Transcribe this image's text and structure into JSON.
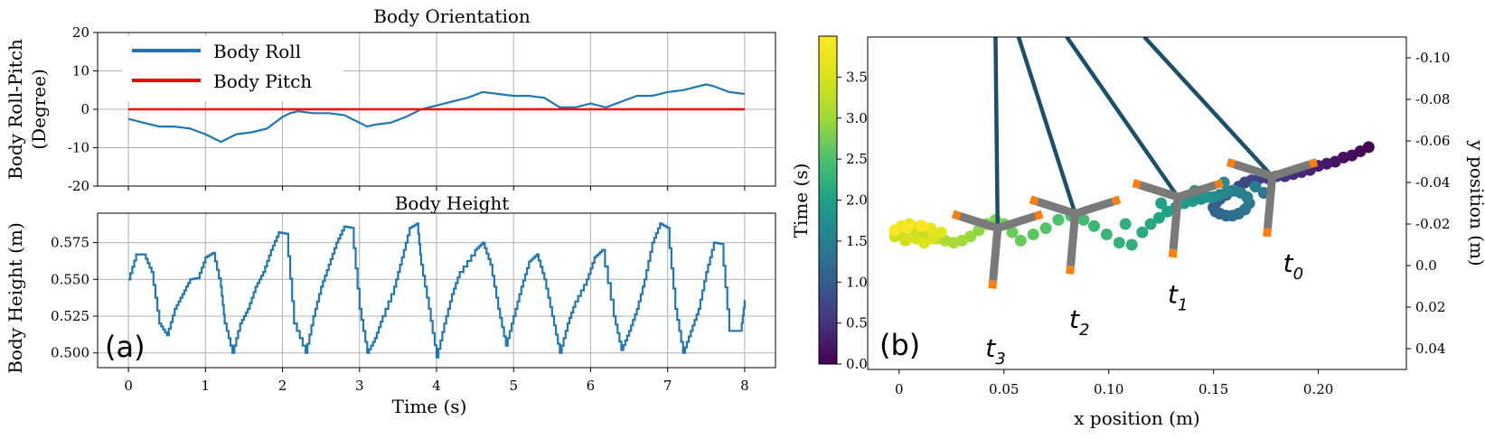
{
  "chart_data": [
    {
      "id": "orientation",
      "type": "line",
      "title": "Body Orientation",
      "ylabel_line1": "Body Roll-Pitch",
      "ylabel_line2": "(Degree)",
      "xlim": [
        -0.4,
        8.4
      ],
      "ylim": [
        -20,
        20
      ],
      "yticks": [
        20,
        10,
        0,
        -10,
        -20
      ],
      "xticks": [
        0,
        1,
        2,
        3,
        4,
        5,
        6,
        7,
        8
      ],
      "grid": true,
      "legend_position": "top-left",
      "series": [
        {
          "name": "Body Roll",
          "color": "#1f77b4",
          "x": [
            0,
            0.2,
            0.4,
            0.6,
            0.8,
            1.0,
            1.1,
            1.2,
            1.3,
            1.4,
            1.6,
            1.8,
            2.0,
            2.1,
            2.2,
            2.4,
            2.6,
            2.8,
            3.0,
            3.1,
            3.2,
            3.4,
            3.6,
            3.8,
            4.0,
            4.2,
            4.4,
            4.6,
            4.8,
            5.0,
            5.2,
            5.4,
            5.6,
            5.7,
            5.8,
            6.0,
            6.2,
            6.4,
            6.6,
            6.8,
            7.0,
            7.2,
            7.4,
            7.5,
            7.6,
            7.8,
            8.0
          ],
          "y": [
            -2.5,
            -3.5,
            -4.5,
            -4.5,
            -5,
            -6.5,
            -7.5,
            -8.5,
            -7.5,
            -6.5,
            -6,
            -5,
            -2,
            -1,
            -0.5,
            -1,
            -1,
            -1.5,
            -3.5,
            -4.5,
            -4,
            -3.5,
            -2,
            0,
            1,
            2,
            3,
            4.5,
            4,
            3.5,
            3.5,
            3,
            0.5,
            0.5,
            0.5,
            1.5,
            0.5,
            2,
            3.5,
            3.5,
            4.5,
            5,
            6,
            6.5,
            6,
            4.5,
            4
          ]
        },
        {
          "name": "Body Pitch",
          "color": "#ff0000",
          "x": [
            0,
            8
          ],
          "y": [
            0,
            0
          ]
        }
      ]
    },
    {
      "id": "height",
      "type": "line",
      "title": "Body Height",
      "ylabel": "Body Height (m)",
      "xlabel": "Time (s)",
      "xlim": [
        -0.4,
        8.4
      ],
      "ylim": [
        0.49,
        0.595
      ],
      "yticks": [
        0.575,
        0.55,
        0.525,
        0.5
      ],
      "ytick_labels": [
        "0.575",
        "0.550",
        "0.525",
        "0.500"
      ],
      "xticks": [
        0,
        1,
        2,
        3,
        4,
        5,
        6,
        7,
        8
      ],
      "grid": true,
      "panel_label": "(a)",
      "series": [
        {
          "name": "Body Height",
          "color": "#1f77b4",
          "x": [
            0,
            0.1,
            0.2,
            0.3,
            0.4,
            0.5,
            0.6,
            0.7,
            0.8,
            0.9,
            1.0,
            1.1,
            1.2,
            1.25,
            1.35,
            1.45,
            1.55,
            1.65,
            1.75,
            1.85,
            1.95,
            2.05,
            2.15,
            2.3,
            2.4,
            2.5,
            2.6,
            2.7,
            2.8,
            2.9,
            3.0,
            3.1,
            3.2,
            3.3,
            3.45,
            3.55,
            3.65,
            3.75,
            3.8,
            3.9,
            4.0,
            4.1,
            4.2,
            4.3,
            4.5,
            4.6,
            4.7,
            4.8,
            4.9,
            5.0,
            5.1,
            5.2,
            5.3,
            5.4,
            5.5,
            5.6,
            5.7,
            5.8,
            5.95,
            6.05,
            6.15,
            6.3,
            6.4,
            6.5,
            6.6,
            6.7,
            6.8,
            6.9,
            7.0,
            7.1,
            7.2,
            7.3,
            7.4,
            7.5,
            7.6,
            7.7,
            7.8,
            7.95,
            8.0
          ],
          "y": [
            0.55,
            0.567,
            0.567,
            0.555,
            0.52,
            0.512,
            0.53,
            0.54,
            0.55,
            0.551,
            0.565,
            0.568,
            0.545,
            0.52,
            0.5,
            0.52,
            0.53,
            0.545,
            0.555,
            0.57,
            0.582,
            0.581,
            0.52,
            0.5,
            0.525,
            0.545,
            0.56,
            0.575,
            0.586,
            0.585,
            0.53,
            0.5,
            0.51,
            0.525,
            0.545,
            0.565,
            0.585,
            0.588,
            0.56,
            0.53,
            0.497,
            0.52,
            0.54,
            0.555,
            0.57,
            0.575,
            0.56,
            0.53,
            0.505,
            0.525,
            0.545,
            0.562,
            0.567,
            0.55,
            0.525,
            0.5,
            0.52,
            0.535,
            0.55,
            0.565,
            0.57,
            0.525,
            0.502,
            0.515,
            0.53,
            0.55,
            0.575,
            0.588,
            0.585,
            0.53,
            0.5,
            0.515,
            0.53,
            0.555,
            0.575,
            0.574,
            0.515,
            0.515,
            0.536
          ]
        }
      ]
    },
    {
      "id": "trajectory",
      "type": "scatter",
      "xlabel": "x position (m)",
      "ylabel": "y position (m)",
      "colorbar_label": "Time (s)",
      "colorbar_range": [
        0,
        4
      ],
      "colorbar_ticks": [
        0.0,
        0.5,
        1.0,
        1.5,
        2.0,
        2.5,
        3.0,
        3.5
      ],
      "colorbar_tick_labels": [
        "0.0",
        "0.5",
        "1.0",
        "1.5",
        "2.0",
        "2.5",
        "3.0",
        "3.5"
      ],
      "xlim": [
        -0.015,
        0.242
      ],
      "ylim": [
        0.05,
        -0.11
      ],
      "xticks": [
        0,
        0.05,
        0.1,
        0.15,
        0.2
      ],
      "xtick_labels": [
        "0",
        "0.05",
        "0.10",
        "0.15",
        "0.20"
      ],
      "yticks": [
        -0.1,
        -0.08,
        -0.06,
        -0.04,
        -0.02,
        0.0,
        0.02,
        0.04
      ],
      "ytick_labels": [
        "-0.10",
        "-0.08",
        "-0.06",
        "-0.04",
        "-0.02",
        "0.0",
        "0.02",
        "0.04"
      ],
      "panel_label": "(b)",
      "annotations": [
        {
          "base": "t",
          "sub": "0",
          "x": 0.188,
          "y": 0.003
        },
        {
          "base": "t",
          "sub": "1",
          "x": 0.133,
          "y": 0.018
        },
        {
          "base": "t",
          "sub": "2",
          "x": 0.086,
          "y": 0.03
        },
        {
          "base": "t",
          "sub": "3",
          "x": 0.046,
          "y": 0.044
        }
      ],
      "robots": [
        {
          "time": "t0",
          "x": 0.178,
          "y": -0.043,
          "tether_top_x": 0.117
        },
        {
          "time": "t1",
          "x": 0.133,
          "y": -0.033,
          "tether_top_x": 0.08
        },
        {
          "time": "t2",
          "x": 0.084,
          "y": -0.025,
          "tether_top_x": 0.057
        },
        {
          "time": "t3",
          "x": 0.047,
          "y": -0.018,
          "tether_top_x": 0.046
        }
      ],
      "points": [
        {
          "x": 0.224,
          "y": -0.057,
          "t": 0.0
        },
        {
          "x": 0.22,
          "y": -0.055,
          "t": 0.05
        },
        {
          "x": 0.216,
          "y": -0.053,
          "t": 0.1
        },
        {
          "x": 0.212,
          "y": -0.052,
          "t": 0.15
        },
        {
          "x": 0.208,
          "y": -0.05,
          "t": 0.2
        },
        {
          "x": 0.204,
          "y": -0.049,
          "t": 0.25
        },
        {
          "x": 0.2,
          "y": -0.048,
          "t": 0.3
        },
        {
          "x": 0.196,
          "y": -0.046,
          "t": 0.35
        },
        {
          "x": 0.192,
          "y": -0.045,
          "t": 0.4
        },
        {
          "x": 0.188,
          "y": -0.044,
          "t": 0.45
        },
        {
          "x": 0.184,
          "y": -0.043,
          "t": 0.5
        },
        {
          "x": 0.18,
          "y": -0.043,
          "t": 0.55
        },
        {
          "x": 0.176,
          "y": -0.042,
          "t": 0.6
        },
        {
          "x": 0.172,
          "y": -0.042,
          "t": 0.65
        },
        {
          "x": 0.168,
          "y": -0.041,
          "t": 0.7
        },
        {
          "x": 0.165,
          "y": -0.04,
          "t": 0.75
        },
        {
          "x": 0.162,
          "y": -0.038,
          "t": 0.8
        },
        {
          "x": 0.159,
          "y": -0.036,
          "t": 0.85
        },
        {
          "x": 0.156,
          "y": -0.034,
          "t": 0.9
        },
        {
          "x": 0.153,
          "y": -0.032,
          "t": 0.95
        },
        {
          "x": 0.151,
          "y": -0.03,
          "t": 1.0
        },
        {
          "x": 0.15,
          "y": -0.028,
          "t": 1.05
        },
        {
          "x": 0.151,
          "y": -0.026,
          "t": 1.1
        },
        {
          "x": 0.153,
          "y": -0.025,
          "t": 1.15
        },
        {
          "x": 0.156,
          "y": -0.024,
          "t": 1.2
        },
        {
          "x": 0.159,
          "y": -0.024,
          "t": 1.25
        },
        {
          "x": 0.162,
          "y": -0.025,
          "t": 1.3
        },
        {
          "x": 0.165,
          "y": -0.027,
          "t": 1.35
        },
        {
          "x": 0.167,
          "y": -0.03,
          "t": 1.4
        },
        {
          "x": 0.166,
          "y": -0.033,
          "t": 1.45
        },
        {
          "x": 0.163,
          "y": -0.035,
          "t": 1.5
        },
        {
          "x": 0.16,
          "y": -0.036,
          "t": 1.55
        },
        {
          "x": 0.156,
          "y": -0.035,
          "t": 1.6
        },
        {
          "x": 0.153,
          "y": -0.034,
          "t": 1.65
        },
        {
          "x": 0.15,
          "y": -0.033,
          "t": 1.7
        },
        {
          "x": 0.147,
          "y": -0.033,
          "t": 1.75
        },
        {
          "x": 0.144,
          "y": -0.032,
          "t": 1.8
        },
        {
          "x": 0.14,
          "y": -0.031,
          "t": 1.85
        },
        {
          "x": 0.136,
          "y": -0.03,
          "t": 1.9
        },
        {
          "x": 0.132,
          "y": -0.028,
          "t": 1.95
        },
        {
          "x": 0.128,
          "y": -0.026,
          "t": 2.0
        },
        {
          "x": 0.124,
          "y": -0.023,
          "t": 2.05
        },
        {
          "x": 0.12,
          "y": -0.02,
          "t": 2.1
        },
        {
          "x": 0.116,
          "y": -0.016,
          "t": 2.15
        },
        {
          "x": 0.111,
          "y": -0.01,
          "t": 2.2
        },
        {
          "x": 0.105,
          "y": -0.011,
          "t": 2.25
        },
        {
          "x": 0.099,
          "y": -0.015,
          "t": 2.3
        },
        {
          "x": 0.093,
          "y": -0.019,
          "t": 2.35
        },
        {
          "x": 0.088,
          "y": -0.022,
          "t": 2.4
        },
        {
          "x": 0.082,
          "y": -0.024,
          "t": 2.45
        },
        {
          "x": 0.076,
          "y": -0.022,
          "t": 2.5
        },
        {
          "x": 0.07,
          "y": -0.018,
          "t": 2.55
        },
        {
          "x": 0.064,
          "y": -0.015,
          "t": 2.6
        },
        {
          "x": 0.058,
          "y": -0.012,
          "t": 2.65
        },
        {
          "x": 0.054,
          "y": -0.016,
          "t": 2.7
        },
        {
          "x": 0.05,
          "y": -0.02,
          "t": 2.75
        },
        {
          "x": 0.046,
          "y": -0.022,
          "t": 2.8
        },
        {
          "x": 0.042,
          "y": -0.02,
          "t": 2.85
        },
        {
          "x": 0.038,
          "y": -0.017,
          "t": 2.9
        },
        {
          "x": 0.034,
          "y": -0.014,
          "t": 2.95
        },
        {
          "x": 0.03,
          "y": -0.012,
          "t": 3.0
        },
        {
          "x": 0.026,
          "y": -0.011,
          "t": 3.05
        },
        {
          "x": 0.022,
          "y": -0.012,
          "t": 3.1
        },
        {
          "x": 0.018,
          "y": -0.013,
          "t": 3.15
        },
        {
          "x": 0.014,
          "y": -0.015,
          "t": 3.2
        },
        {
          "x": 0.01,
          "y": -0.016,
          "t": 3.25
        },
        {
          "x": 0.006,
          "y": -0.017,
          "t": 3.3
        },
        {
          "x": 0.002,
          "y": -0.016,
          "t": 3.35
        },
        {
          "x": -0.002,
          "y": -0.014,
          "t": 3.4
        },
        {
          "x": 0.003,
          "y": -0.012,
          "t": 3.45
        },
        {
          "x": 0.008,
          "y": -0.013,
          "t": 3.5
        },
        {
          "x": 0.012,
          "y": -0.011,
          "t": 3.55
        },
        {
          "x": 0.016,
          "y": -0.013,
          "t": 3.6
        },
        {
          "x": 0.02,
          "y": -0.016,
          "t": 3.65
        },
        {
          "x": 0.015,
          "y": -0.018,
          "t": 3.7
        },
        {
          "x": 0.01,
          "y": -0.019,
          "t": 3.75
        },
        {
          "x": 0.005,
          "y": -0.02,
          "t": 3.8
        },
        {
          "x": 0.001,
          "y": -0.019,
          "t": 3.85
        },
        {
          "x": -0.002,
          "y": -0.017,
          "t": 3.9
        },
        {
          "x": 0.004,
          "y": -0.018,
          "t": 3.95
        },
        {
          "x": 0.011,
          "y": -0.019,
          "t": 4.0
        },
        {
          "x": 0.108,
          "y": -0.02,
          "t": 2.2
        },
        {
          "x": 0.125,
          "y": -0.03,
          "t": 2.0
        },
        {
          "x": 0.141,
          "y": -0.036,
          "t": 1.9
        },
        {
          "x": 0.155,
          "y": -0.04,
          "t": 1.7
        },
        {
          "x": 0.17,
          "y": -0.038,
          "t": 1.5
        },
        {
          "x": 0.174,
          "y": -0.035,
          "t": 1.4
        }
      ]
    }
  ]
}
